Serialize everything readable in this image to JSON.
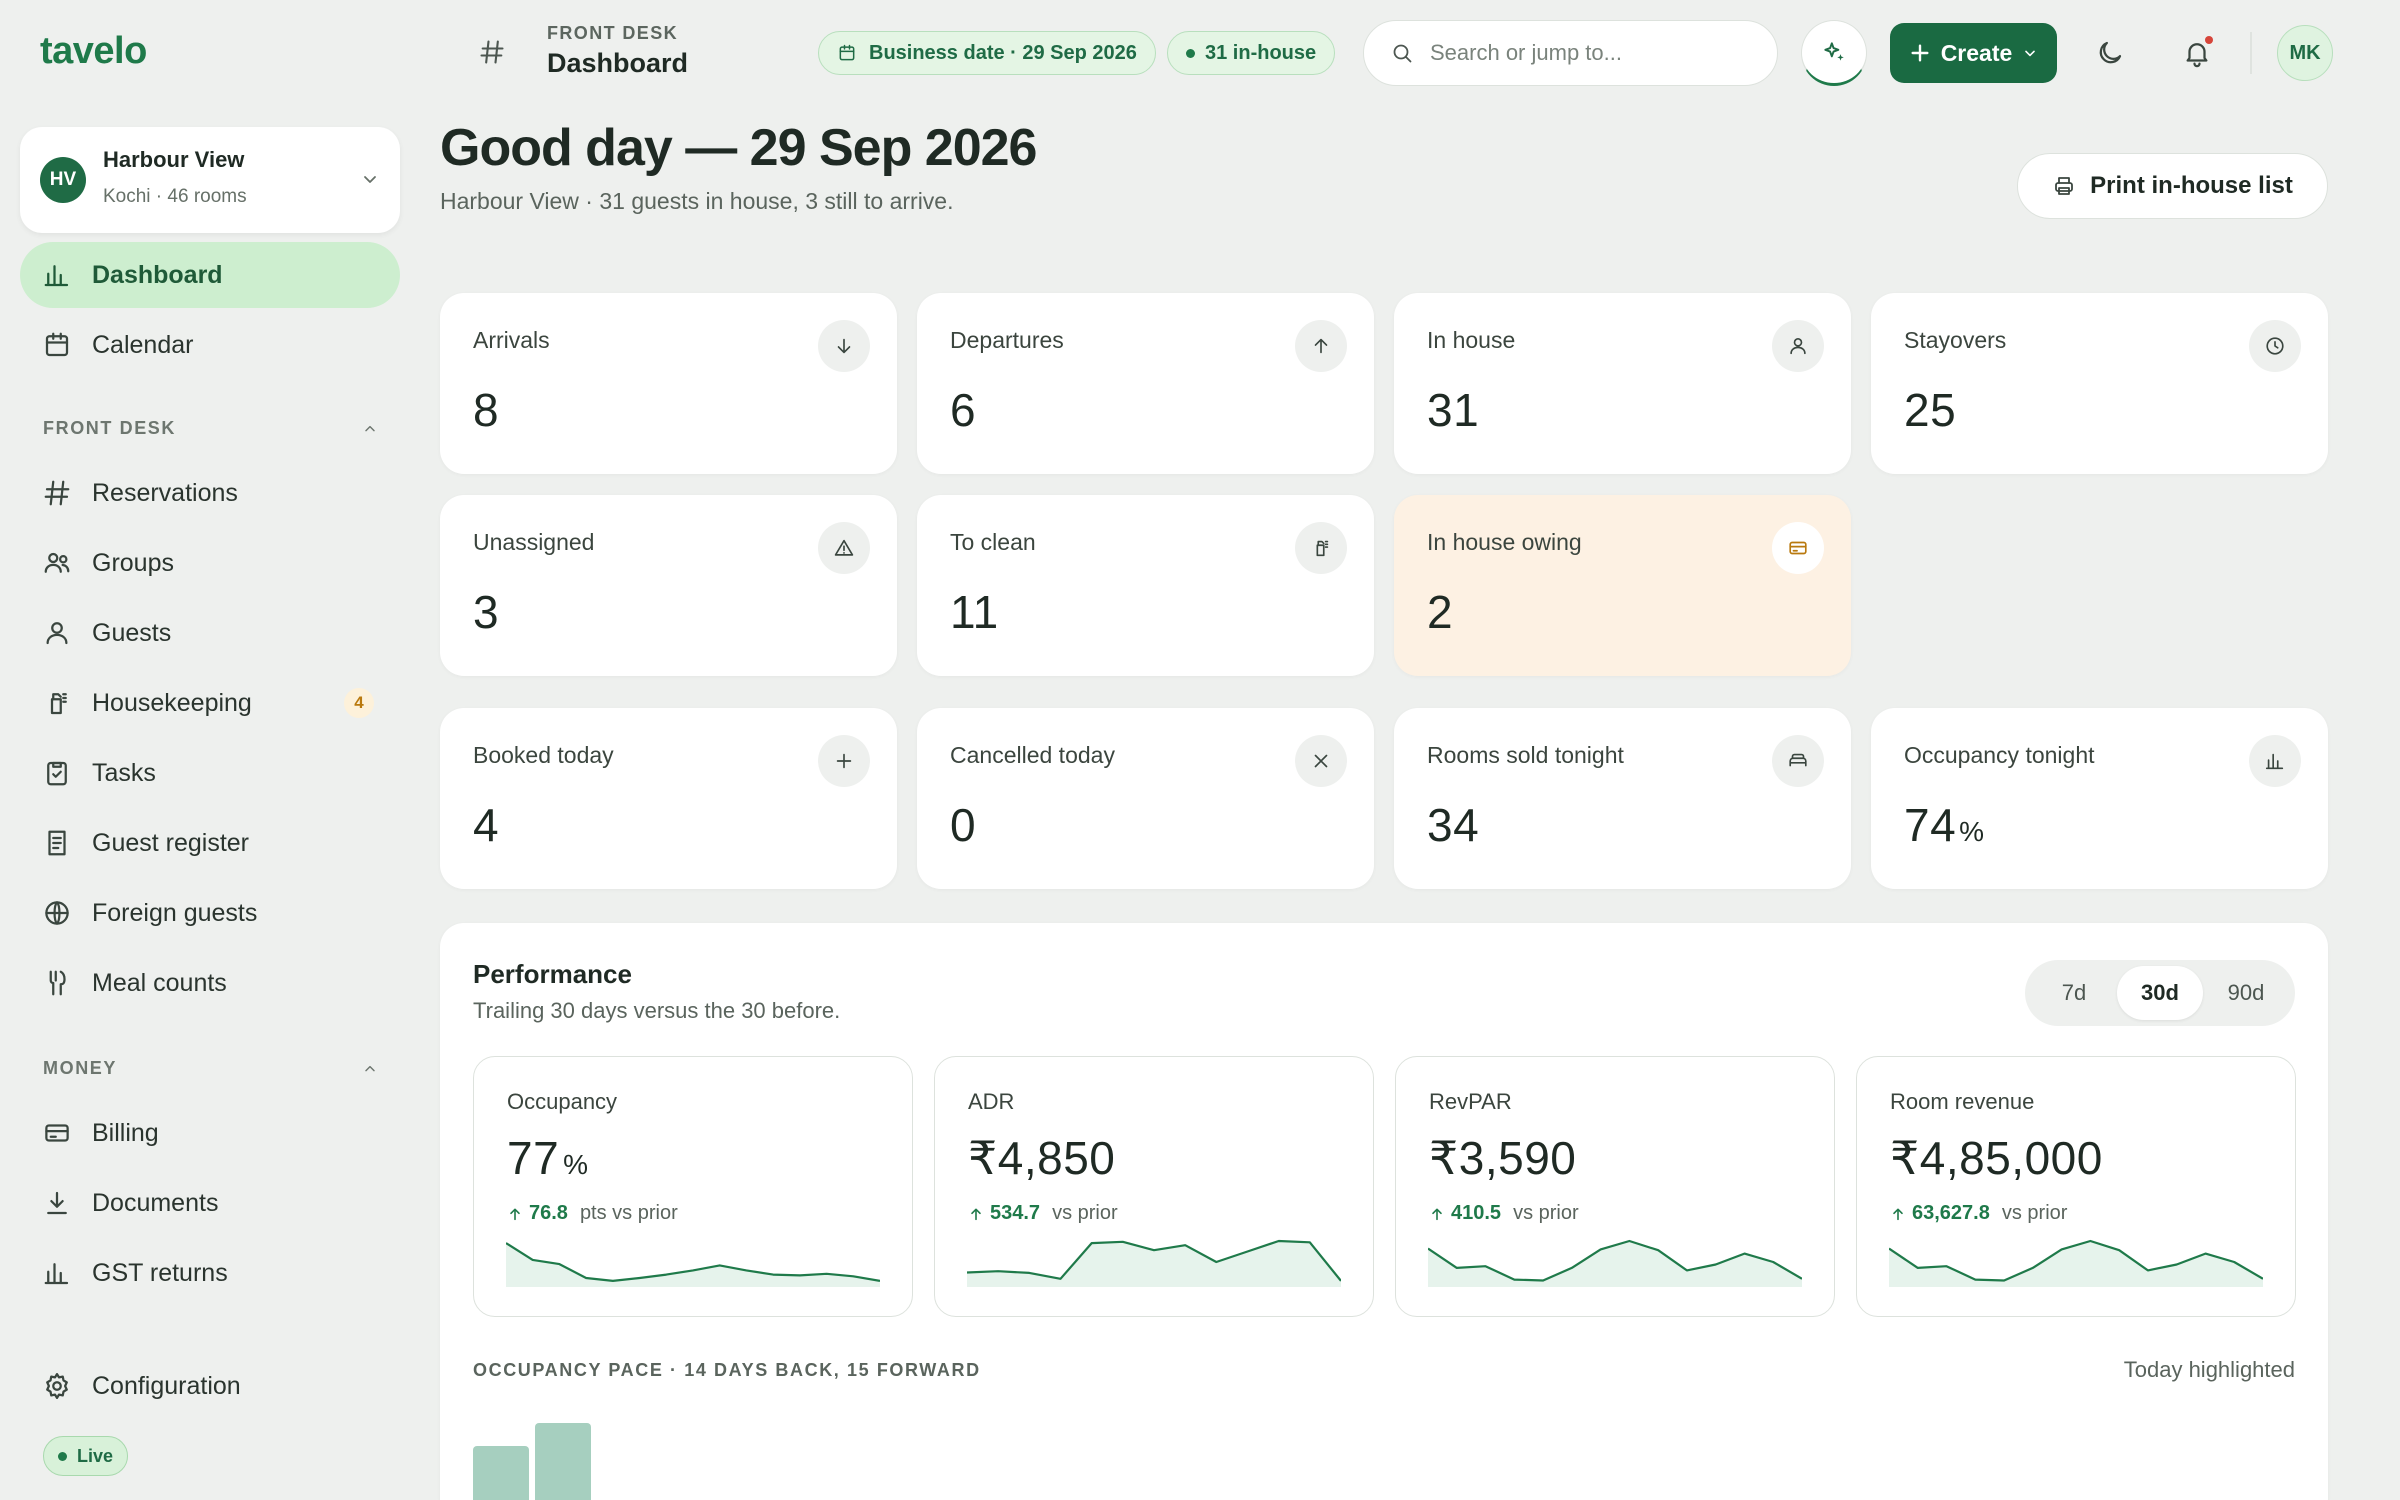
{
  "app": {
    "logo": "tavelo"
  },
  "property": {
    "initials": "HV",
    "name": "Harbour View",
    "subtitle": "Kochi · 46 rooms"
  },
  "sidebar": {
    "top_items": [
      {
        "label": "Dashboard",
        "icon": "bar-chart-icon",
        "active": true
      },
      {
        "label": "Calendar",
        "icon": "calendar-icon"
      }
    ],
    "sections": [
      {
        "title": "FRONT DESK",
        "items": [
          {
            "label": "Reservations",
            "icon": "hash-icon"
          },
          {
            "label": "Groups",
            "icon": "users-icon"
          },
          {
            "label": "Guests",
            "icon": "user-icon"
          },
          {
            "label": "Housekeeping",
            "icon": "spray-bottle-icon",
            "badge": "4"
          },
          {
            "label": "Tasks",
            "icon": "clipboard-check-icon"
          },
          {
            "label": "Guest register",
            "icon": "register-book-icon"
          },
          {
            "label": "Foreign guests",
            "icon": "globe-icon"
          },
          {
            "label": "Meal counts",
            "icon": "utensils-icon"
          }
        ]
      },
      {
        "title": "MONEY",
        "items": [
          {
            "label": "Billing",
            "icon": "credit-card-icon"
          },
          {
            "label": "Documents",
            "icon": "download-icon"
          },
          {
            "label": "GST returns",
            "icon": "bar-chart-icon"
          }
        ]
      }
    ],
    "config_label": "Configuration",
    "status_label": "Live"
  },
  "header": {
    "crumb_section": "FRONT DESK",
    "crumb_page": "Dashboard",
    "business_date": "Business date · 29 Sep 2026",
    "inhouse_pill": "31 in-house",
    "search_placeholder": "Search or jump to...",
    "create_label": "Create",
    "user_initials": "MK"
  },
  "page": {
    "greeting": "Good day — 29 Sep 2026",
    "subtitle": "Harbour View · 31 guests in house, 3 still to arrive.",
    "print_label": "Print in-house list"
  },
  "stats": [
    {
      "label": "Arrivals",
      "value": "8",
      "icon": "arrow-down-icon"
    },
    {
      "label": "Departures",
      "value": "6",
      "icon": "arrow-up-icon"
    },
    {
      "label": "In house",
      "value": "31",
      "icon": "user-icon"
    },
    {
      "label": "Stayovers",
      "value": "25",
      "icon": "clock-icon"
    },
    {
      "label": "Unassigned",
      "value": "3",
      "icon": "warning-icon"
    },
    {
      "label": "To clean",
      "value": "11",
      "icon": "spray-bottle-icon"
    },
    {
      "label": "In house owing",
      "value": "2",
      "icon": "credit-card-icon",
      "highlight": true
    },
    {
      "label": "Booked today",
      "value": "4",
      "icon": "plus-icon"
    },
    {
      "label": "Cancelled today",
      "value": "0",
      "icon": "x-icon"
    },
    {
      "label": "Rooms sold tonight",
      "value": "34",
      "icon": "bed-icon"
    },
    {
      "label": "Occupancy tonight",
      "value": "74",
      "unit": "%",
      "icon": "bar-chart-icon"
    }
  ],
  "performance": {
    "title": "Performance",
    "subtitle": "Trailing 30 days versus the 30 before.",
    "ranges": [
      "7d",
      "30d",
      "90d"
    ],
    "selected_range": "30d",
    "delta_suffix_pts": "pts vs prior",
    "delta_suffix": "vs prior",
    "kpis": [
      {
        "label": "Occupancy",
        "value": "77",
        "unit": "%",
        "delta": "76.8",
        "suffix": "pts vs prior",
        "trend": [
          0.95,
          0.55,
          0.45,
          0.12,
          0.05,
          0.12,
          0.2,
          0.3,
          0.42,
          0.3,
          0.2,
          0.18,
          0.22,
          0.16,
          0.05
        ]
      },
      {
        "label": "ADR",
        "value": "₹4,850",
        "unit": "",
        "delta": "534.7",
        "suffix": "vs prior",
        "trend": [
          0.25,
          0.28,
          0.24,
          0.1,
          0.95,
          0.98,
          0.78,
          0.9,
          0.5,
          0.75,
          1.0,
          0.97,
          0.05
        ]
      },
      {
        "label": "RevPAR",
        "value": "₹3,590",
        "unit": "",
        "delta": "410.5",
        "suffix": "vs prior",
        "trend": [
          0.82,
          0.36,
          0.4,
          0.08,
          0.06,
          0.36,
          0.8,
          1.0,
          0.78,
          0.3,
          0.44,
          0.7,
          0.5,
          0.1
        ]
      },
      {
        "label": "Room revenue",
        "value": "₹4,85,000",
        "unit": "",
        "delta": "63,627.8",
        "suffix": "vs prior",
        "trend": [
          0.82,
          0.36,
          0.4,
          0.08,
          0.06,
          0.36,
          0.8,
          1.0,
          0.78,
          0.3,
          0.44,
          0.7,
          0.5,
          0.1
        ]
      }
    ],
    "pace_title": "OCCUPANCY PACE · 14 DAYS BACK, 15 FORWARD",
    "pace_note": "Today highlighted",
    "pace_bars_visible": [
      0.77,
      1.0
    ]
  },
  "colors": {
    "brand": "#1f7a4a",
    "brand_dark": "#1a6a42",
    "active_nav": "#cdeecf",
    "warn_card": "#fdf1e3",
    "spark_line": "#1f7a4a",
    "spark_fill": "#e6f3ec"
  }
}
